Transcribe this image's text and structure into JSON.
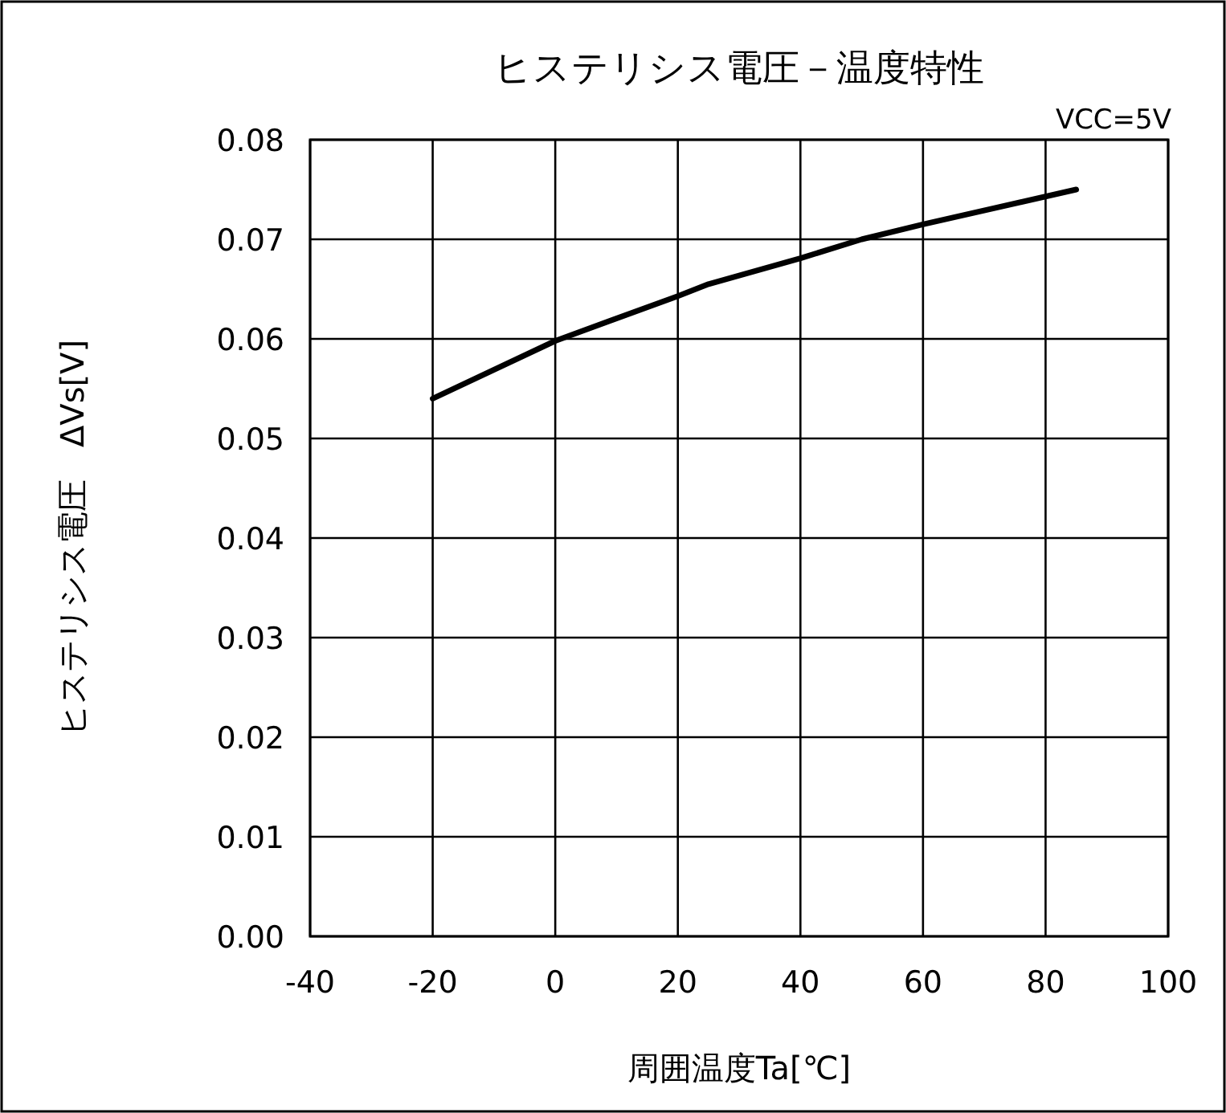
{
  "chart_data": {
    "type": "line",
    "title": "ヒステリシス電圧－温度特性",
    "xlabel": "周囲温度Ta[℃]",
    "ylabel": "ヒステリシス電圧　ΔVs[V]",
    "annotations": [
      "VCC=5V"
    ],
    "x": [
      -20,
      0,
      20,
      25,
      40,
      50,
      60,
      85
    ],
    "series": [
      {
        "color": "#000000",
        "values": [
          0.054,
          0.0598,
          0.0643,
          0.0655,
          0.0681,
          0.07,
          0.0715,
          0.075
        ]
      }
    ],
    "xlim": [
      -40,
      100
    ],
    "xticks": [
      -40,
      -20,
      0,
      20,
      40,
      60,
      80,
      100
    ],
    "ylim": [
      0,
      0.08
    ],
    "yticks": [
      {
        "value": 0,
        "label": "0.00"
      },
      0.01,
      0.02,
      0.03,
      0.04,
      0.05,
      0.06,
      0.07,
      0.08
    ],
    "grid": true,
    "marker": "none",
    "line_style": "solid"
  }
}
